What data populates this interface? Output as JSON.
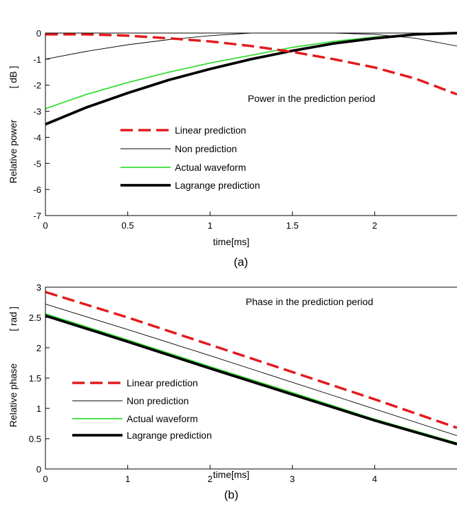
{
  "chart_data": [
    {
      "type": "line",
      "caption": "(a)",
      "annotation": "Power in the prediction period",
      "xlabel": "time[ms]",
      "ylabel": "Relative power",
      "yunit": "[ dB ]",
      "xlim": [
        0,
        2.5
      ],
      "ylim": [
        -7,
        0
      ],
      "xticks": [
        0,
        0.5,
        1,
        1.5,
        2
      ],
      "yticks": [
        0,
        -1,
        -2,
        -3,
        -4,
        -5,
        -6,
        -7
      ],
      "grid": false,
      "legend_position": "center-left",
      "series": [
        {
          "name": "Linear prediction",
          "color": "#e31a1c",
          "style": "dashed",
          "x": [
            0,
            0.25,
            0.5,
            0.75,
            1.0,
            1.25,
            1.5,
            1.75,
            2.0,
            2.25,
            2.5
          ],
          "y": [
            -0.05,
            -0.05,
            -0.1,
            -0.2,
            -0.32,
            -0.5,
            -0.72,
            -1.0,
            -1.32,
            -1.75,
            -2.35
          ]
        },
        {
          "name": "Non prediction",
          "color": "#000000",
          "style": "thin",
          "x": [
            0,
            0.25,
            0.5,
            0.75,
            1.0,
            1.25,
            1.5,
            1.75,
            2.0,
            2.25,
            2.5
          ],
          "y": [
            -1.0,
            -0.7,
            -0.45,
            -0.25,
            -0.1,
            0.0,
            0.0,
            0.0,
            -0.05,
            -0.2,
            -0.5
          ]
        },
        {
          "name": "Actual waveform",
          "color": "#33dd33",
          "style": "solid",
          "x": [
            0,
            0.25,
            0.5,
            0.75,
            1.0,
            1.25,
            1.5,
            1.75,
            2.0,
            2.25,
            2.5
          ],
          "y": [
            -2.9,
            -2.35,
            -1.9,
            -1.5,
            -1.15,
            -0.85,
            -0.55,
            -0.32,
            -0.15,
            -0.05,
            0.0
          ]
        },
        {
          "name": "Lagrange prediction",
          "color": "#000000",
          "style": "thick",
          "x": [
            0,
            0.25,
            0.5,
            0.75,
            1.0,
            1.25,
            1.5,
            1.75,
            2.0,
            2.25,
            2.5
          ],
          "y": [
            -3.5,
            -2.85,
            -2.3,
            -1.8,
            -1.38,
            -1.0,
            -0.68,
            -0.4,
            -0.2,
            -0.05,
            0.0
          ]
        }
      ]
    },
    {
      "type": "line",
      "caption": "(b)",
      "annotation": "Phase in the prediction period",
      "xlabel": "time[ms]",
      "ylabel": "Relative phase",
      "yunit": "[ rad ]",
      "xlim": [
        0,
        5
      ],
      "ylim": [
        0,
        3
      ],
      "xticks": [
        0,
        1,
        2,
        3,
        4
      ],
      "yticks": [
        0,
        0.5,
        1,
        1.5,
        2,
        2.5,
        3
      ],
      "grid": false,
      "legend_position": "center-left",
      "series": [
        {
          "name": "Linear prediction",
          "color": "#e31a1c",
          "style": "dashed",
          "x": [
            0,
            1,
            2,
            3,
            4,
            5
          ],
          "y": [
            2.92,
            2.5,
            2.05,
            1.6,
            1.15,
            0.68
          ]
        },
        {
          "name": "Non prediction",
          "color": "#000000",
          "style": "thin",
          "x": [
            0,
            1,
            2,
            3,
            4,
            5
          ],
          "y": [
            2.72,
            2.3,
            1.87,
            1.43,
            0.99,
            0.55
          ]
        },
        {
          "name": "Actual waveform",
          "color": "#33dd33",
          "style": "solid",
          "x": [
            0,
            1,
            2,
            3,
            4,
            5
          ],
          "y": [
            2.56,
            2.13,
            1.69,
            1.26,
            0.82,
            0.43
          ]
        },
        {
          "name": "Lagrange prediction",
          "color": "#000000",
          "style": "thick",
          "x": [
            0,
            1,
            2,
            3,
            4,
            5
          ],
          "y": [
            2.53,
            2.1,
            1.66,
            1.23,
            0.8,
            0.41
          ]
        }
      ]
    }
  ]
}
